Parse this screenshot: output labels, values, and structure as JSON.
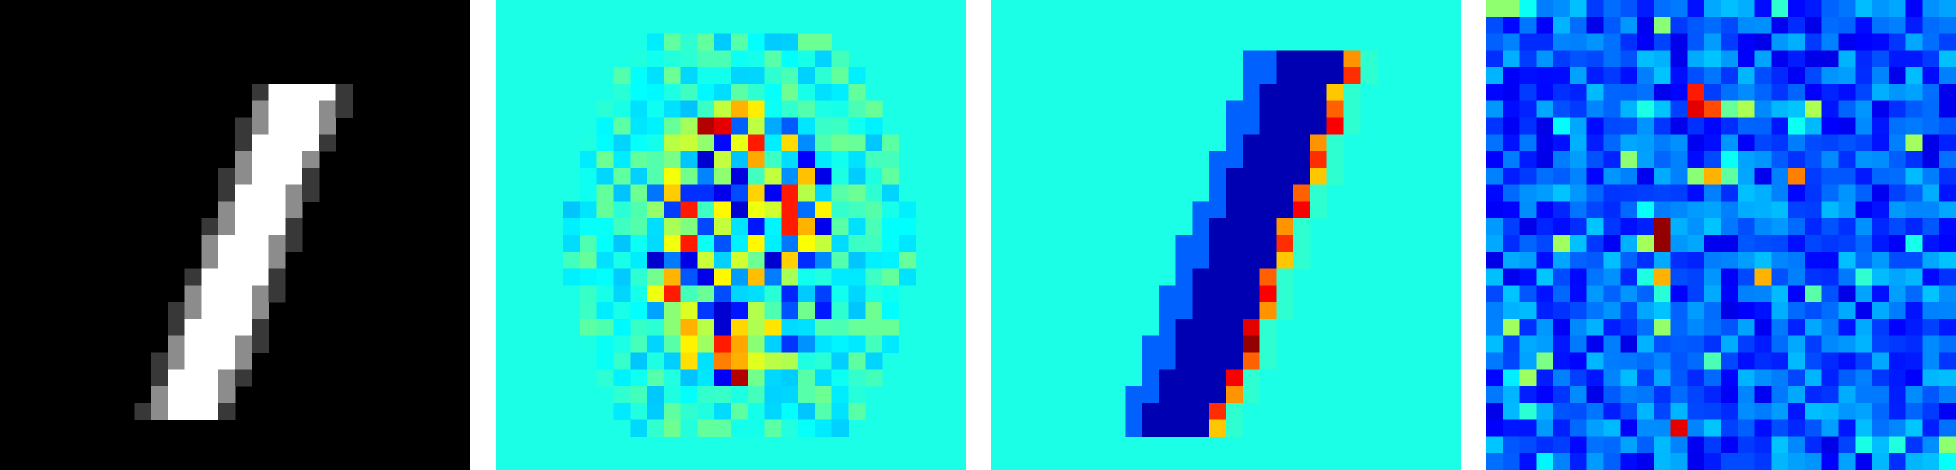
{
  "figure": {
    "panels": [
      {
        "id": "panel-1",
        "kind": "grayscale",
        "colormap": "gray",
        "background": "#000000"
      },
      {
        "id": "panel-2",
        "kind": "heatmap",
        "colormap": "jet",
        "background": "#2effd1"
      },
      {
        "id": "panel-3",
        "kind": "heatmap",
        "colormap": "jet",
        "background": "#2effd1"
      },
      {
        "id": "panel-4",
        "kind": "heatmap",
        "colormap": "jet",
        "background": "#0000c8"
      }
    ],
    "colors": {
      "jet_dark_blue": "#00008f",
      "jet_blue": "#0000ff",
      "jet_cyan": "#00ffff",
      "jet_teal": "#2effd1",
      "jet_green": "#80ff80",
      "jet_yellow": "#ffff00",
      "jet_orange": "#ff8000",
      "jet_red": "#ff0000",
      "jet_dark_red": "#800000"
    }
  }
}
